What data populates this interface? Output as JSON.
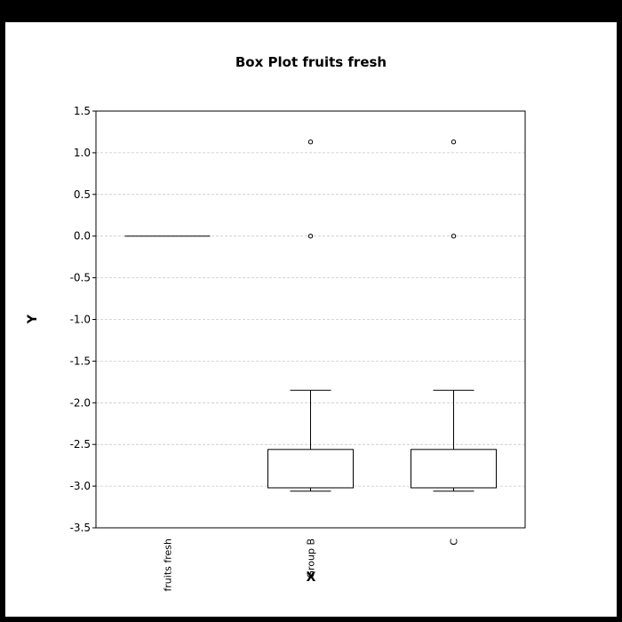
{
  "chart_data": {
    "type": "box",
    "title": "Box Plot fruits fresh",
    "xlabel": "X",
    "ylabel": "Y",
    "ylim": [
      -3.5,
      1.5
    ],
    "yticks": [
      1.5,
      1.0,
      0.5,
      0.0,
      -0.5,
      -1.0,
      -1.5,
      -2.0,
      -2.5,
      -3.0,
      -3.5
    ],
    "ytick_labels": [
      "1.5",
      "1.0",
      "0.5",
      "0.0",
      "-0.5",
      "-1.0",
      "-1.5",
      "-2.0",
      "-2.5",
      "-3.0",
      "-3.5"
    ],
    "grid": true,
    "categories": [
      "fruits fresh",
      "Group B",
      "C"
    ],
    "boxes": [
      {
        "category": "fruits fresh",
        "whislo": 0.0,
        "q1": 0.0,
        "med": 0.0,
        "q3": 0.0,
        "whishi": 0.0,
        "fliers": []
      },
      {
        "category": "Group B",
        "whislo": -3.06,
        "q1": -3.02,
        "med": -3.02,
        "q3": -2.56,
        "whishi": -1.85,
        "fliers": [
          0.0,
          1.13
        ]
      },
      {
        "category": "C",
        "whislo": -3.06,
        "q1": -3.02,
        "med": -3.02,
        "q3": -2.56,
        "whishi": -1.85,
        "fliers": [
          0.0,
          1.13
        ]
      }
    ]
  }
}
